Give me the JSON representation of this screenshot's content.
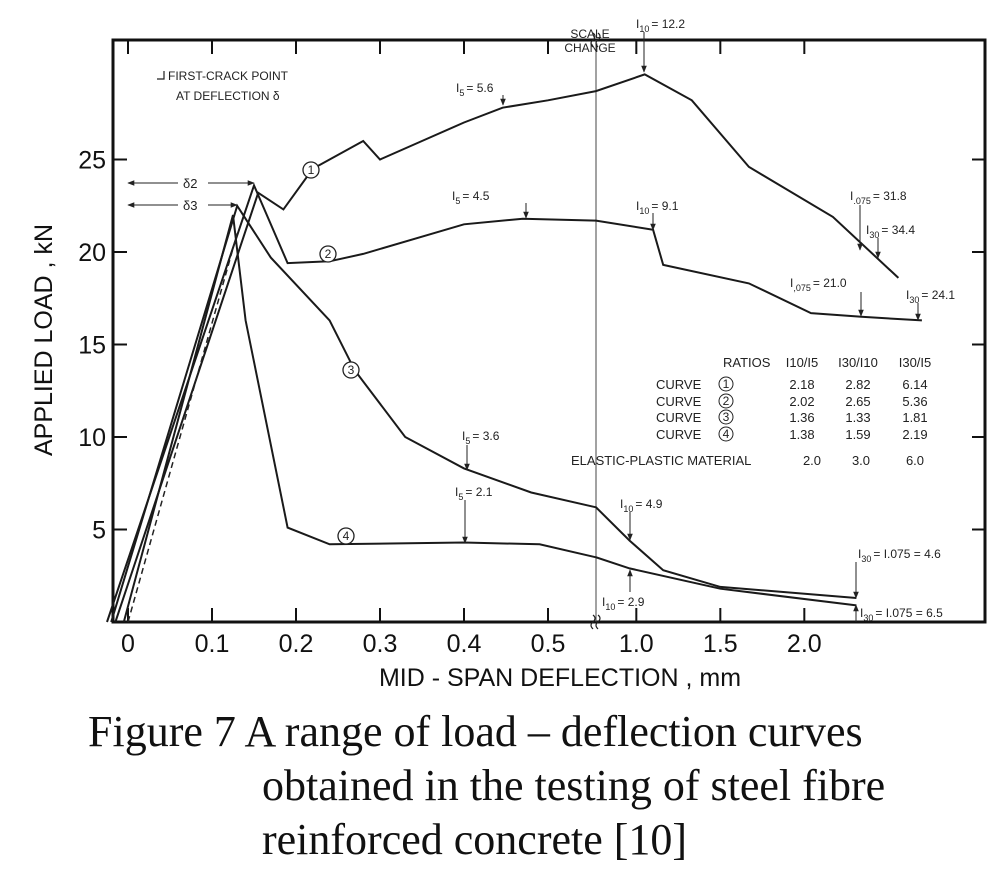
{
  "chart_data": {
    "type": "line",
    "xlabel": "MID - SPAN DEFLECTION , mm",
    "ylabel": "APPLIED LOAD , kN",
    "x_ticks": [
      "0",
      "0.1",
      "0.2",
      "0.3",
      "0.4",
      "0.5",
      "1.0",
      "1.5",
      "2.0"
    ],
    "x_tick_values": [
      0,
      0.1,
      0.2,
      0.3,
      0.4,
      0.5,
      1.0,
      1.5,
      2.0
    ],
    "y_ticks": [
      "5",
      "10",
      "15",
      "20",
      "25"
    ],
    "y_tick_values": [
      5,
      10,
      15,
      20,
      25
    ],
    "ylim": [
      0,
      31.5
    ],
    "x_scale_change": {
      "label_1": "SCALE",
      "label_2": "CHANGE",
      "from": 0.557,
      "to": 0.76
    },
    "grid": false,
    "series": [
      {
        "name": "1",
        "points": [
          [
            -0.015,
            0
          ],
          [
            0.155,
            23.2
          ],
          [
            0.185,
            22.3
          ],
          [
            0.22,
            24.5
          ],
          [
            0.28,
            26.0
          ],
          [
            0.3,
            25.0
          ],
          [
            0.35,
            26.0
          ],
          [
            0.4,
            27.0
          ],
          [
            0.446,
            27.8
          ],
          [
            0.5,
            28.2
          ],
          [
            0.557,
            28.7
          ],
          [
            0.76,
            28.7
          ],
          [
            1.05,
            29.6
          ],
          [
            1.33,
            28.2
          ],
          [
            1.67,
            24.6
          ],
          [
            2.17,
            21.9
          ],
          [
            2.56,
            18.6
          ]
        ]
      },
      {
        "name": "2",
        "points": [
          [
            -0.025,
            0
          ],
          [
            0.15,
            23.6
          ],
          [
            0.19,
            19.4
          ],
          [
            0.24,
            19.5
          ],
          [
            0.28,
            19.9
          ],
          [
            0.4,
            21.5
          ],
          [
            0.47,
            21.8
          ],
          [
            0.557,
            21.7
          ],
          [
            0.76,
            21.7
          ],
          [
            1.1,
            21.2
          ],
          [
            1.16,
            19.3
          ],
          [
            1.67,
            18.3
          ],
          [
            2.04,
            16.7
          ],
          [
            2.34,
            16.5
          ],
          [
            2.7,
            16.3
          ]
        ]
      },
      {
        "name": "3",
        "points": [
          [
            -0.02,
            0
          ],
          [
            0.13,
            22.5
          ],
          [
            0.17,
            19.7
          ],
          [
            0.24,
            16.3
          ],
          [
            0.27,
            13.6
          ],
          [
            0.33,
            10.0
          ],
          [
            0.4,
            8.3
          ],
          [
            0.48,
            7.0
          ],
          [
            0.557,
            6.2
          ],
          [
            0.76,
            6.2
          ],
          [
            0.96,
            4.4
          ],
          [
            1.16,
            2.8
          ],
          [
            1.5,
            1.9
          ],
          [
            2.31,
            1.3
          ]
        ]
      },
      {
        "name": "4",
        "points": [
          [
            -0.005,
            0
          ],
          [
            0.125,
            22.0
          ],
          [
            0.14,
            16.3
          ],
          [
            0.19,
            5.1
          ],
          [
            0.24,
            4.2
          ],
          [
            0.4,
            4.3
          ],
          [
            0.49,
            4.2
          ],
          [
            0.557,
            3.5
          ],
          [
            0.76,
            3.5
          ],
          [
            0.96,
            2.9
          ],
          [
            1.5,
            1.8
          ],
          [
            2.31,
            0.9
          ]
        ]
      }
    ],
    "curve_labels": [
      "1",
      "2",
      "3",
      "4"
    ],
    "annotations": {
      "first_crack_1": "FIRST-CRACK POINT",
      "first_crack_2": "AT DEFLECTION δ",
      "delta2": "δ2",
      "delta3": "δ3",
      "labels": [
        {
          "sym": "I",
          "sub": "10",
          "val": "= 12.2"
        },
        {
          "sym": "I",
          "sub": "5",
          "val": "= 5.6"
        },
        {
          "sym": "I",
          "sub": "5",
          "val": "= 4.5"
        },
        {
          "sym": "I",
          "sub": "10",
          "val": "= 9.1"
        },
        {
          "sym": "I",
          "sub": ".075",
          "val": "= 31.8"
        },
        {
          "sym": "I",
          "sub": "30",
          "val": "= 34.4"
        },
        {
          "sym": "I",
          "sub": ",075",
          "val": "= 21.0"
        },
        {
          "sym": "I",
          "sub": "30",
          "val": "= 24.1"
        },
        {
          "sym": "I",
          "sub": "5",
          "val": "= 3.6"
        },
        {
          "sym": "I",
          "sub": "10",
          "val": "= 4.9"
        },
        {
          "sym": "I",
          "sub": "5",
          "val": "= 2.1"
        },
        {
          "sym": "I",
          "sub": "10",
          "val": "= 2.9"
        },
        {
          "sym": "I",
          "sub": "30",
          "val": "= I.075 = 4.6"
        },
        {
          "sym": "I",
          "sub": "30",
          "val": "= I.075 = 6.5"
        }
      ]
    },
    "ratios_table": {
      "title": "RATIOS",
      "columns": [
        "I10/I5",
        "I30/I10",
        "I30/I5"
      ],
      "rows": [
        {
          "label": "CURVE",
          "curve": "1",
          "values": [
            "2.18",
            "2.82",
            "6.14"
          ]
        },
        {
          "label": "CURVE",
          "curve": "2",
          "values": [
            "2.02",
            "2.65",
            "5.36"
          ]
        },
        {
          "label": "CURVE",
          "curve": "3",
          "values": [
            "1.36",
            "1.33",
            "1.81"
          ]
        },
        {
          "label": "CURVE",
          "curve": "4",
          "values": [
            "1.38",
            "1.59",
            "2.19"
          ]
        }
      ],
      "elastic_plastic": {
        "label": "ELASTIC-PLASTIC MATERIAL",
        "values": [
          "2.0",
          "3.0",
          "6.0"
        ]
      }
    }
  },
  "caption": {
    "line1": "Figure 7 A range of load – deflection curves",
    "line2": "obtained in the testing of steel fibre",
    "line3": "reinforced concrete [10]"
  }
}
